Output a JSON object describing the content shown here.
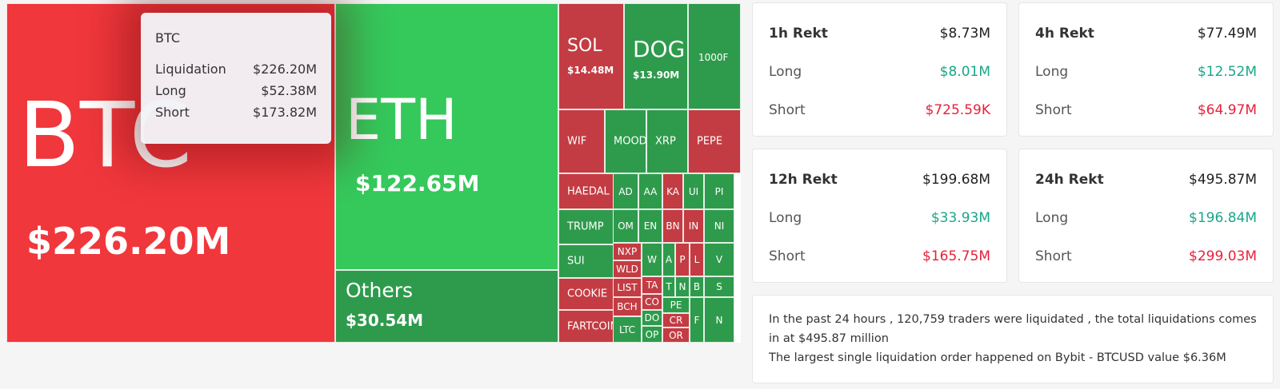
{
  "treemap": {
    "btc": {
      "name": "BTC",
      "value": "$226.20M"
    },
    "eth": {
      "name": "ETH",
      "value": "$122.65M"
    },
    "others": {
      "name": "Others",
      "value": "$30.54M"
    },
    "sol": {
      "name": "SOL",
      "value": "$14.48M"
    },
    "doge": {
      "name": "DOGE",
      "value": "$13.90M"
    },
    "k1000": {
      "name": "1000F"
    },
    "wif": {
      "name": "WIF"
    },
    "mood": {
      "name": "MOOD"
    },
    "xrp": {
      "name": "XRP"
    },
    "pepe": {
      "name": "PEPE"
    },
    "haedal": {
      "name": "HAEDAL"
    },
    "trump": {
      "name": "TRUMP"
    },
    "sui": {
      "name": "SUI"
    },
    "cookie": {
      "name": "COOKIE"
    },
    "fartcoin": {
      "name": "FARTCOIN"
    },
    "tiles": [
      {
        "label": "AD",
        "c": "green"
      },
      {
        "label": "AA",
        "c": "green"
      },
      {
        "label": "KA",
        "c": "red"
      },
      {
        "label": "UI",
        "c": "green"
      },
      {
        "label": "PI",
        "c": "green"
      },
      {
        "label": "OM",
        "c": "green"
      },
      {
        "label": "EN",
        "c": "green"
      },
      {
        "label": "BN",
        "c": "red"
      },
      {
        "label": "IN",
        "c": "red"
      },
      {
        "label": "NI",
        "c": "green"
      },
      {
        "label": "NXP",
        "c": "red"
      },
      {
        "label": "W",
        "c": "green"
      },
      {
        "label": "A",
        "c": "green"
      },
      {
        "label": "P",
        "c": "red"
      },
      {
        "label": "L",
        "c": "red"
      },
      {
        "label": "V",
        "c": "green"
      },
      {
        "label": "WLD",
        "c": "red"
      },
      {
        "label": "TA",
        "c": "red"
      },
      {
        "label": "T",
        "c": "green"
      },
      {
        "label": "N",
        "c": "green"
      },
      {
        "label": "B",
        "c": "green"
      },
      {
        "label": "S",
        "c": "green"
      },
      {
        "label": "LIST",
        "c": "red"
      },
      {
        "label": "CO",
        "c": "red"
      },
      {
        "label": "PE",
        "c": "green"
      },
      {
        "label": "BCH",
        "c": "red"
      },
      {
        "label": "DO",
        "c": "green"
      },
      {
        "label": "CR",
        "c": "red"
      },
      {
        "label": "LTC",
        "c": "green"
      },
      {
        "label": "OP",
        "c": "green"
      },
      {
        "label": "OR",
        "c": "red"
      },
      {
        "label": "F",
        "c": "green"
      },
      {
        "label": "N",
        "c": "green"
      }
    ]
  },
  "tooltip": {
    "title": "BTC",
    "rows": [
      {
        "label": "Liquidation",
        "value": "$226.20M"
      },
      {
        "label": "Long",
        "value": "$52.38M"
      },
      {
        "label": "Short",
        "value": "$173.82M"
      }
    ]
  },
  "stats": [
    {
      "title": "1h Rekt",
      "total": "$8.73M",
      "long_label": "Long",
      "long": "$8.01M",
      "short_label": "Short",
      "short": "$725.59K"
    },
    {
      "title": "4h Rekt",
      "total": "$77.49M",
      "long_label": "Long",
      "long": "$12.52M",
      "short_label": "Short",
      "short": "$64.97M"
    },
    {
      "title": "12h Rekt",
      "total": "$199.68M",
      "long_label": "Long",
      "long": "$33.93M",
      "short_label": "Short",
      "short": "$165.75M"
    },
    {
      "title": "24h Rekt",
      "total": "$495.87M",
      "long_label": "Long",
      "long": "$196.84M",
      "short_label": "Short",
      "short": "$299.03M"
    }
  ],
  "summary": {
    "line1": "In the past 24 hours , 120,759 traders were liquidated , the total liquidations comes in at $495.87 million",
    "line2": "The largest single liquidation order happened on Bybit - BTCUSD value $6.36M"
  },
  "colors": {
    "long": "#19a68a",
    "short": "#e8213b",
    "btc_tile": "#f0373c",
    "eth_tile": "#35c85b"
  }
}
